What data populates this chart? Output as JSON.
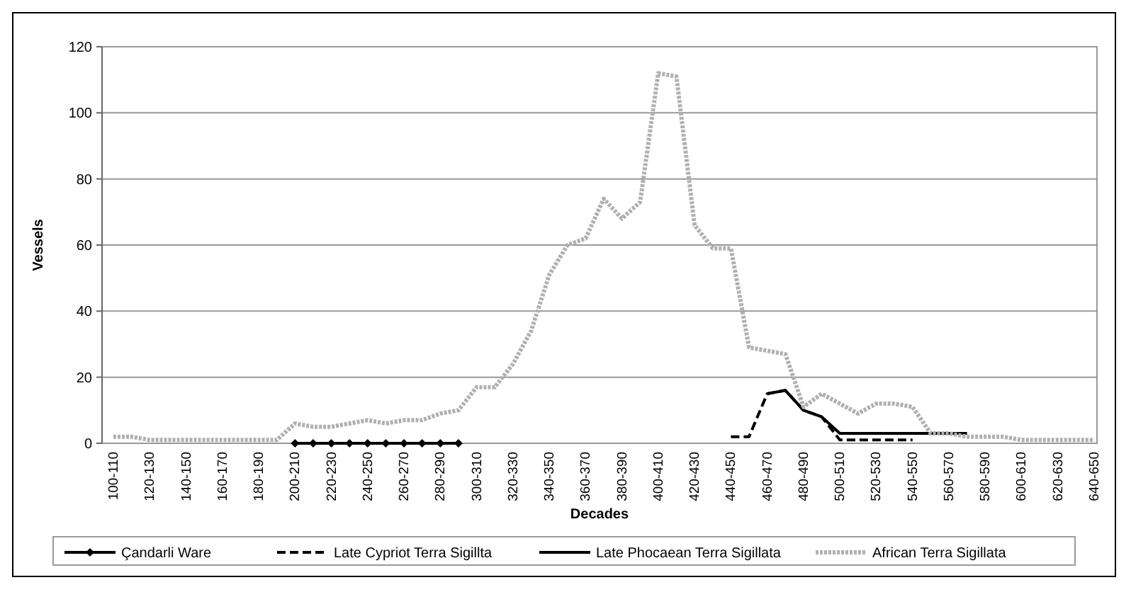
{
  "chart_data": {
    "type": "line",
    "xlabel": "Decades",
    "ylabel": "Vessels",
    "categories": [
      "100-110",
      null,
      "120-130",
      null,
      "140-150",
      null,
      "160-170",
      null,
      "180-190",
      null,
      "200-210",
      null,
      "220-230",
      null,
      "240-250",
      null,
      "260-270",
      null,
      "280-290",
      null,
      "300-310",
      null,
      "320-330",
      null,
      "340-350",
      null,
      "360-370",
      null,
      "380-390",
      null,
      "400-410",
      null,
      "420-430",
      null,
      "440-450",
      null,
      "460-470",
      null,
      "480-490",
      null,
      "500-510",
      null,
      "520-530",
      null,
      "540-550",
      null,
      "560-570",
      null,
      "580-590",
      null,
      "600-610",
      null,
      "620-630",
      null,
      "640-650"
    ],
    "ylim": [
      0,
      120
    ],
    "yticks": [
      0,
      20,
      40,
      60,
      80,
      100,
      120
    ],
    "grid": "y",
    "legend": "bottom",
    "series": [
      {
        "name": "Çandarli Ware",
        "color": "#000000",
        "marker": "diamond",
        "line_style": "solid",
        "values": [
          null,
          null,
          null,
          null,
          null,
          null,
          null,
          null,
          null,
          null,
          0,
          0,
          0,
          0,
          0,
          0,
          0,
          0,
          0,
          0,
          null,
          null,
          null,
          null,
          null,
          null,
          null,
          null,
          null,
          null,
          null,
          null,
          null,
          null,
          null,
          null,
          null,
          null,
          null,
          null,
          null,
          null,
          null,
          null,
          null,
          null,
          null,
          null,
          null,
          null,
          null,
          null,
          null,
          null,
          null
        ]
      },
      {
        "name": "Late Cypriot Terra Sigillta",
        "color": "#000000",
        "marker": "none",
        "line_style": "dashed",
        "values": [
          null,
          null,
          null,
          null,
          null,
          null,
          null,
          null,
          null,
          null,
          null,
          null,
          null,
          null,
          null,
          null,
          null,
          null,
          null,
          null,
          null,
          null,
          null,
          null,
          null,
          null,
          null,
          null,
          null,
          null,
          null,
          null,
          null,
          null,
          2,
          2,
          15,
          16,
          10,
          8,
          1,
          1,
          1,
          1,
          1,
          null,
          null,
          null,
          null,
          null,
          null,
          null,
          null,
          null,
          null
        ]
      },
      {
        "name": "Late Phocaean Terra Sigillata",
        "color": "#000000",
        "marker": "none",
        "line_style": "solid",
        "values": [
          null,
          null,
          null,
          null,
          null,
          null,
          null,
          null,
          null,
          null,
          null,
          null,
          null,
          null,
          null,
          null,
          null,
          null,
          null,
          null,
          null,
          null,
          null,
          null,
          null,
          null,
          null,
          null,
          null,
          null,
          null,
          null,
          null,
          null,
          null,
          null,
          15,
          16,
          10,
          8,
          3,
          3,
          3,
          3,
          3,
          3,
          3,
          3,
          null,
          null,
          null,
          null,
          null,
          null,
          null
        ]
      },
      {
        "name": "African Terra Sigillata",
        "color": "#b0b0b0",
        "marker": "none",
        "line_style": "dotted",
        "values": [
          2,
          2,
          1,
          1,
          1,
          1,
          1,
          1,
          1,
          1,
          6,
          5,
          5,
          6,
          7,
          6,
          7,
          7,
          9,
          10,
          17,
          17,
          24,
          34,
          51,
          60,
          62,
          74,
          68,
          73,
          112,
          111,
          66,
          59,
          59,
          29,
          28,
          27,
          11,
          15,
          12,
          9,
          12,
          12,
          11,
          3,
          3,
          2,
          2,
          2,
          1,
          1,
          1,
          1,
          1
        ]
      }
    ]
  }
}
